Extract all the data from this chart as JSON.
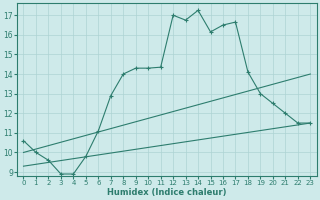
{
  "xlabel": "Humidex (Indice chaleur)",
  "bg_color": "#ceeaea",
  "grid_color": "#aed4d4",
  "line_color": "#2d7d6e",
  "spine_color": "#2d7d6e",
  "xlim": [
    -0.5,
    23.5
  ],
  "ylim": [
    8.8,
    17.6
  ],
  "yticks": [
    9,
    10,
    11,
    12,
    13,
    14,
    15,
    16,
    17
  ],
  "xticks": [
    0,
    1,
    2,
    3,
    4,
    5,
    6,
    7,
    8,
    9,
    10,
    11,
    12,
    13,
    14,
    15,
    16,
    17,
    18,
    19,
    20,
    21,
    22,
    23
  ],
  "series1_x": [
    0,
    1,
    2,
    3,
    4,
    5,
    6,
    7,
    8,
    9,
    10,
    11,
    12,
    13,
    14,
    15,
    16,
    17,
    18,
    19,
    20,
    21,
    22,
    23
  ],
  "series1_y": [
    10.6,
    10.0,
    9.6,
    8.9,
    8.9,
    9.8,
    11.1,
    12.9,
    14.0,
    14.3,
    14.3,
    14.35,
    17.0,
    16.75,
    17.25,
    16.15,
    16.5,
    16.65,
    14.1,
    13.0,
    12.5,
    12.0,
    11.5,
    11.5
  ],
  "series2_x": [
    0,
    23
  ],
  "series2_y": [
    10.0,
    14.0
  ],
  "series3_x": [
    0,
    23
  ],
  "series3_y": [
    9.3,
    11.5
  ]
}
